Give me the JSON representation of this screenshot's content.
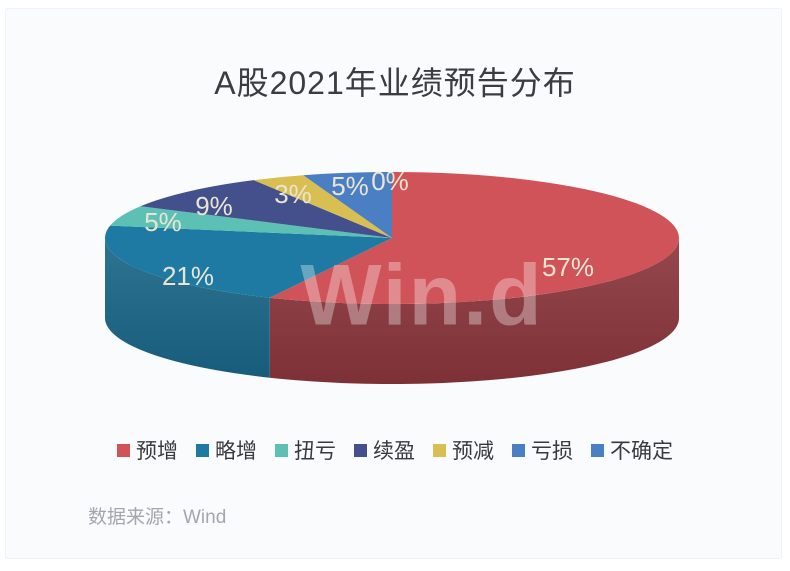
{
  "page": {
    "background": "#ffffff",
    "panel_background": "#fafbfd"
  },
  "header": {
    "title": "A股2021年业绩预告分布"
  },
  "watermark": {
    "text": "Win.d"
  },
  "footer": {
    "source_label": "数据来源：Wind"
  },
  "chart_data": {
    "type": "pie",
    "style": "3d",
    "title": "A股2021年业绩预告分布",
    "unit": "%",
    "start_angle_deg": 0,
    "direction": "clockwise",
    "legend_position": "bottom",
    "categories": [
      "预增",
      "略增",
      "扭亏",
      "续盈",
      "预减",
      "亏损",
      "不确定"
    ],
    "values": [
      57,
      21,
      5,
      9,
      3,
      5,
      0
    ],
    "labels": [
      "57%",
      "21%",
      "5%",
      "9%",
      "3%",
      "5%",
      "0%"
    ],
    "colors": [
      "#cf5358",
      "#1e7aa2",
      "#5cc0b4",
      "#44508c",
      "#d9bf52",
      "#4a80c3",
      "#4a80c3"
    ],
    "side_colors": [
      "#7d3137",
      "#175c7a",
      "#3f8d84",
      "#2f3762",
      "#9d8a38",
      "#33598a",
      "#33598a"
    ],
    "label_color": "#eae5d2"
  }
}
